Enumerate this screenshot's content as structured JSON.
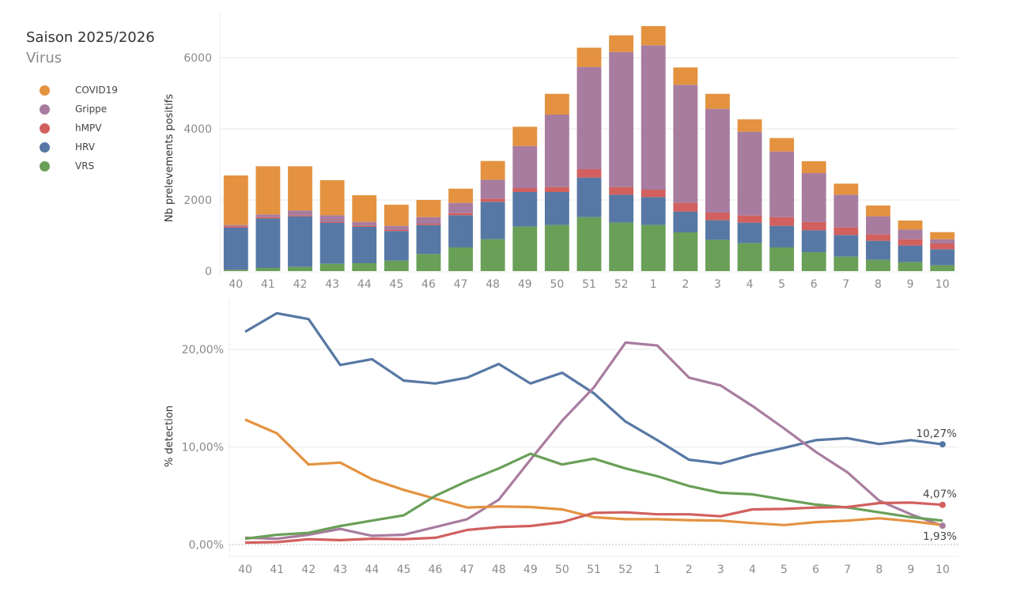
{
  "legend": {
    "title": "Saison 2025/2026",
    "subtitle": "Virus",
    "items": [
      {
        "label": "COVID19",
        "color": "#E49240"
      },
      {
        "label": "Grippe",
        "color": "#A87C9F"
      },
      {
        "label": "hMPV",
        "color": "#D1605E"
      },
      {
        "label": "HRV",
        "color": "#5778A4"
      },
      {
        "label": "VRS",
        "color": "#6A9F58"
      }
    ]
  },
  "chart_data": [
    {
      "type": "bar",
      "stacked": true,
      "ylabel": "Nb prelevements positifs",
      "ylim": [
        0,
        7200
      ],
      "yticks": [
        "0",
        "2000",
        "4000",
        "6000"
      ],
      "grid": true,
      "categories": [
        "40",
        "41",
        "42",
        "43",
        "44",
        "45",
        "46",
        "47",
        "48",
        "49",
        "50",
        "51",
        "52",
        "1",
        "2",
        "3",
        "4",
        "5",
        "6",
        "7",
        "8",
        "9",
        "10"
      ],
      "series": [
        {
          "name": "VRS",
          "color": "#6A9F58",
          "values": [
            37,
            89,
            119,
            207,
            222,
            296,
            481,
            667,
            896,
            1252,
            1296,
            1519,
            1363,
            1296,
            1089,
            881,
            785,
            667,
            533,
            407,
            319,
            252,
            163
          ]
        },
        {
          "name": "HRV",
          "color": "#5778A4",
          "values": [
            1185,
            1392,
            1422,
            1149,
            1022,
            830,
            815,
            903,
            1052,
            970,
            926,
            1111,
            785,
            785,
            585,
            549,
            578,
            607,
            615,
            608,
            533,
            467,
            452
          ]
        },
        {
          "name": "hMPV",
          "color": "#D1605E",
          "values": [
            37,
            38,
            29,
            22,
            30,
            30,
            37,
            60,
            89,
            111,
            141,
            237,
            215,
            208,
            245,
            214,
            200,
            245,
            237,
            215,
            185,
            177,
            163
          ]
        },
        {
          "name": "Grippe",
          "color": "#A87C9F",
          "values": [
            37,
            74,
            134,
            192,
            111,
            118,
            186,
            288,
            533,
            1186,
            2037,
            2874,
            3800,
            4059,
            3318,
            2919,
            2356,
            1844,
            1371,
            918,
            504,
            274,
            118
          ]
        },
        {
          "name": "COVID19",
          "color": "#E49240",
          "values": [
            1393,
            1355,
            1244,
            986,
            748,
            593,
            481,
            400,
            526,
            540,
            585,
            540,
            467,
            541,
            489,
            422,
            348,
            378,
            333,
            311,
            303,
            252,
            200
          ]
        }
      ]
    },
    {
      "type": "line",
      "ylabel": "% detection",
      "ylim": [
        -1.5,
        25
      ],
      "yticks": [
        "0,00%",
        "10,00%",
        "20,00%"
      ],
      "grid": true,
      "categories": [
        "40",
        "41",
        "42",
        "43",
        "44",
        "45",
        "46",
        "47",
        "48",
        "49",
        "50",
        "51",
        "52",
        "1",
        "2",
        "3",
        "4",
        "5",
        "6",
        "7",
        "8",
        "9",
        "10"
      ],
      "series": [
        {
          "name": "HRV",
          "color": "#5778A4",
          "values": [
            21.8,
            23.7,
            23.1,
            18.4,
            19.0,
            16.8,
            16.5,
            17.1,
            18.5,
            16.5,
            17.6,
            15.5,
            12.6,
            10.7,
            8.7,
            8.3,
            9.2,
            9.9,
            10.7,
            10.9,
            10.3,
            10.7,
            10.27
          ]
        },
        {
          "name": "Grippe",
          "color": "#A87C9F",
          "values": [
            0.7,
            0.6,
            1.0,
            1.6,
            0.9,
            1.0,
            1.8,
            2.6,
            4.6,
            8.7,
            12.7,
            16.1,
            20.7,
            20.4,
            17.1,
            16.3,
            14.2,
            11.9,
            9.5,
            7.4,
            4.5,
            3.1,
            1.93
          ]
        },
        {
          "name": "COVID19",
          "color": "#E49240",
          "values": [
            12.8,
            11.4,
            8.2,
            8.4,
            6.7,
            5.6,
            4.7,
            3.8,
            3.9,
            3.85,
            3.6,
            2.8,
            2.6,
            2.6,
            2.5,
            2.45,
            2.2,
            2.0,
            2.3,
            2.45,
            2.7,
            2.4,
            2.0
          ]
        },
        {
          "name": "VRS",
          "color": "#6A9F58",
          "values": [
            0.6,
            1.0,
            1.2,
            1.9,
            2.45,
            3.0,
            5.0,
            6.5,
            7.8,
            9.3,
            8.2,
            8.8,
            7.8,
            7.0,
            6.0,
            5.3,
            5.15,
            4.6,
            4.1,
            3.8,
            3.3,
            2.8,
            2.45
          ]
        },
        {
          "name": "hMPV",
          "color": "#D1605E",
          "values": [
            0.2,
            0.25,
            0.55,
            0.45,
            0.6,
            0.55,
            0.7,
            1.5,
            1.8,
            1.9,
            2.3,
            3.25,
            3.3,
            3.1,
            3.1,
            2.9,
            3.6,
            3.65,
            3.8,
            3.85,
            4.25,
            4.3,
            4.07
          ]
        }
      ],
      "annotations": [
        {
          "series": "HRV",
          "text": "10,27%"
        },
        {
          "series": "hMPV",
          "text": "4,07%"
        },
        {
          "series": "Grippe",
          "text": "1,93%"
        }
      ]
    }
  ]
}
